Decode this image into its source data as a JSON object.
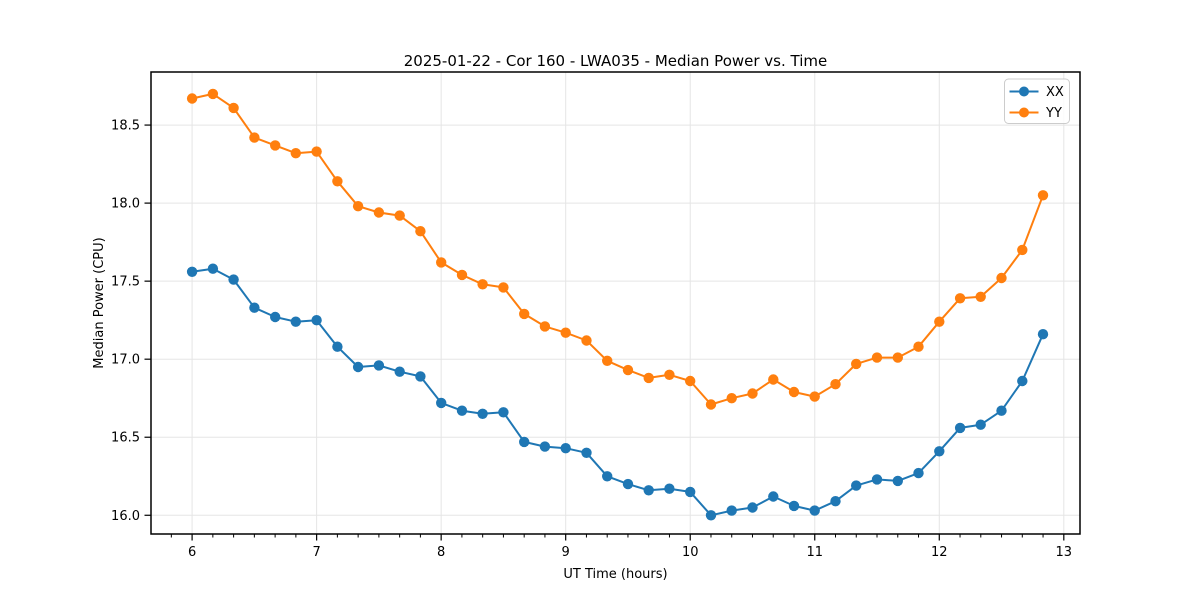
{
  "figure": {
    "title": "2025-01-22 - Cor 160 - LWA035 - Median Power vs. Time",
    "xlabel": "UT Time (hours)",
    "ylabel": "Median Power (CPU)"
  },
  "legend": {
    "position": "upper right",
    "entries": [
      {
        "label": "XX",
        "color": "#1f77b4"
      },
      {
        "label": "YY",
        "color": "#ff7f0e"
      }
    ]
  },
  "chart_data": {
    "type": "line",
    "title": "2025-01-22 - Cor 160 - LWA035 - Median Power vs. Time",
    "xlabel": "UT Time (hours)",
    "ylabel": "Median Power (CPU)",
    "xlim": [
      5.67,
      13.13
    ],
    "ylim": [
      15.88,
      18.84
    ],
    "xticks": [
      6,
      7,
      8,
      9,
      10,
      11,
      12,
      13
    ],
    "yticks": [
      16.0,
      16.5,
      17.0,
      17.5,
      18.0,
      18.5
    ],
    "x_minor_tick_step": 0.1667,
    "grid": true,
    "grid_color": "#e5e5e5",
    "marker": "circle",
    "legend_position": "upper right",
    "x": [
      6.0,
      6.167,
      6.333,
      6.5,
      6.667,
      6.833,
      7.0,
      7.167,
      7.333,
      7.5,
      7.667,
      7.833,
      8.0,
      8.167,
      8.333,
      8.5,
      8.667,
      8.833,
      9.0,
      9.167,
      9.333,
      9.5,
      9.667,
      9.833,
      10.0,
      10.167,
      10.333,
      10.5,
      10.667,
      10.833,
      11.0,
      11.167,
      11.333,
      11.5,
      11.667,
      11.833,
      12.0,
      12.167,
      12.333,
      12.5,
      12.667,
      12.833
    ],
    "series": [
      {
        "name": "XX",
        "color": "#1f77b4",
        "values": [
          17.56,
          17.58,
          17.51,
          17.33,
          17.27,
          17.24,
          17.25,
          17.08,
          16.95,
          16.96,
          16.92,
          16.89,
          16.72,
          16.67,
          16.65,
          16.66,
          16.47,
          16.44,
          16.43,
          16.4,
          16.25,
          16.2,
          16.16,
          16.17,
          16.15,
          16.0,
          16.03,
          16.05,
          16.12,
          16.06,
          16.03,
          16.09,
          16.19,
          16.23,
          16.22,
          16.27,
          16.41,
          16.56,
          16.58,
          16.67,
          16.86,
          17.16
        ]
      },
      {
        "name": "YY",
        "color": "#ff7f0e",
        "values": [
          18.67,
          18.7,
          18.61,
          18.42,
          18.37,
          18.32,
          18.33,
          18.14,
          17.98,
          17.94,
          17.92,
          17.82,
          17.62,
          17.54,
          17.48,
          17.46,
          17.29,
          17.21,
          17.17,
          17.12,
          16.99,
          16.93,
          16.88,
          16.9,
          16.86,
          16.71,
          16.75,
          16.78,
          16.87,
          16.79,
          16.76,
          16.84,
          16.97,
          17.01,
          17.01,
          17.08,
          17.24,
          17.39,
          17.4,
          17.52,
          17.7,
          18.05
        ]
      }
    ]
  }
}
